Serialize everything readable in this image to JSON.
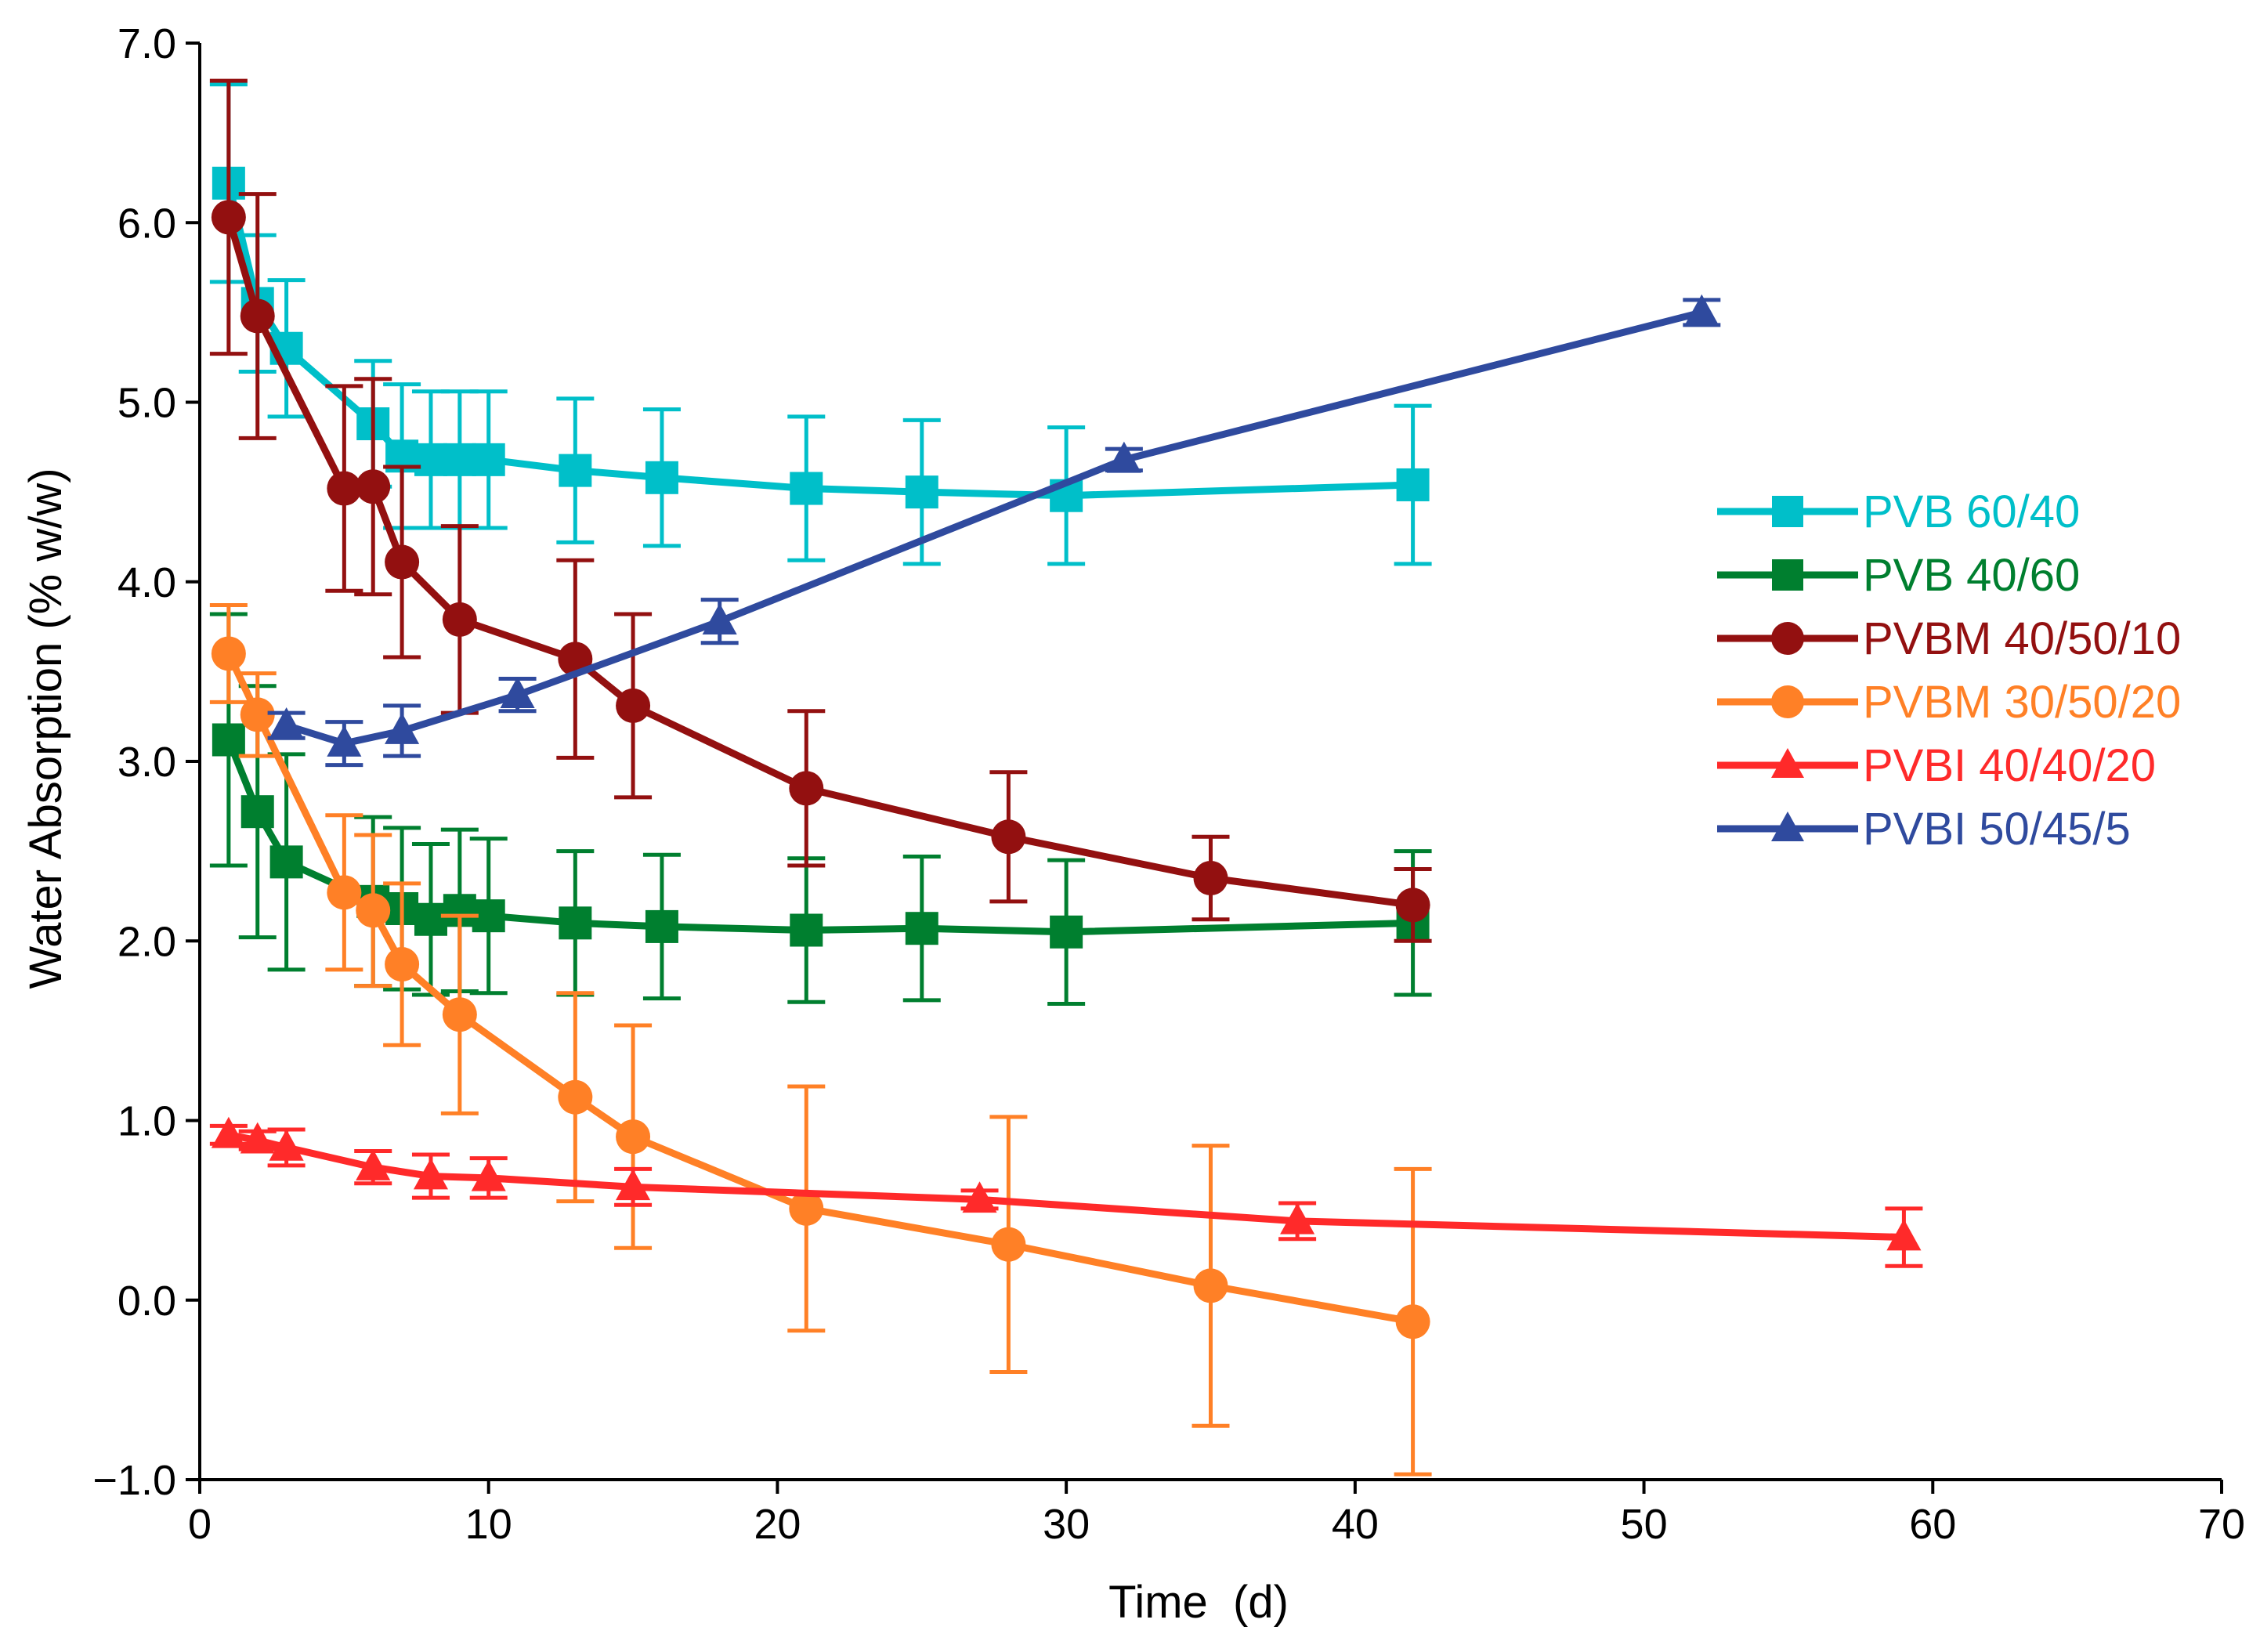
{
  "chart_data": {
    "type": "line",
    "title": "",
    "xlabel": "Time  (d)",
    "ylabel": "Water Absorption (% w/w)",
    "xlim": [
      0,
      70
    ],
    "ylim": [
      -1.0,
      7.0
    ],
    "xticks": [
      0,
      10,
      20,
      30,
      40,
      50,
      60,
      70
    ],
    "yticks": [
      -1.0,
      0.0,
      1.0,
      2.0,
      3.0,
      4.0,
      5.0,
      6.0,
      7.0
    ],
    "ytick_labels": [
      "−1.0",
      "0.0",
      "1.0",
      "2.0",
      "3.0",
      "4.0",
      "5.0",
      "6.0",
      "7.0"
    ],
    "grid": false,
    "legend_position": "right",
    "series": [
      {
        "name": "PVB 60/40",
        "color": "#00BFC9",
        "marker": "square",
        "x": [
          1,
          2,
          3,
          6,
          7,
          8,
          9,
          10,
          13,
          16,
          21,
          25,
          30,
          42
        ],
        "y": [
          6.22,
          5.55,
          5.3,
          4.88,
          4.7,
          4.68,
          4.68,
          4.68,
          4.62,
          4.58,
          4.52,
          4.5,
          4.48,
          4.54
        ],
        "err": [
          0.55,
          0.38,
          0.38,
          0.35,
          0.4,
          0.38,
          0.38,
          0.38,
          0.4,
          0.38,
          0.4,
          0.4,
          0.38,
          0.44
        ]
      },
      {
        "name": "PVB 40/60",
        "color": "#007F2F",
        "marker": "square",
        "x": [
          1,
          2,
          3,
          6,
          7,
          8,
          9,
          10,
          13,
          16,
          21,
          25,
          30,
          42
        ],
        "y": [
          3.12,
          2.72,
          2.44,
          2.22,
          2.18,
          2.12,
          2.17,
          2.14,
          2.1,
          2.08,
          2.06,
          2.07,
          2.05,
          2.1
        ],
        "err": [
          0.7,
          0.7,
          0.6,
          0.47,
          0.45,
          0.42,
          0.45,
          0.43,
          0.4,
          0.4,
          0.4,
          0.4,
          0.4,
          0.4
        ]
      },
      {
        "name": "PVBM 40/50/10",
        "color": "#931010",
        "marker": "circle",
        "x": [
          1,
          2,
          5,
          6,
          7,
          9,
          13,
          15,
          21,
          28,
          35,
          42
        ],
        "y": [
          6.03,
          5.48,
          4.52,
          4.53,
          4.11,
          3.79,
          3.57,
          3.31,
          2.85,
          2.58,
          2.35,
          2.2
        ],
        "err": [
          0.76,
          0.68,
          0.57,
          0.6,
          0.53,
          0.52,
          0.55,
          0.51,
          0.43,
          0.36,
          0.23,
          0.2
        ]
      },
      {
        "name": "PVBM 30/50/20",
        "color": "#FF8026",
        "marker": "circle",
        "x": [
          1,
          2,
          5,
          6,
          7,
          9,
          13,
          15,
          21,
          28,
          35,
          42
        ],
        "y": [
          3.6,
          3.26,
          2.27,
          2.17,
          1.87,
          1.59,
          1.13,
          0.91,
          0.51,
          0.31,
          0.08,
          -0.12
        ],
        "err": [
          0.27,
          0.23,
          0.43,
          0.42,
          0.45,
          0.55,
          0.58,
          0.62,
          0.68,
          0.71,
          0.78,
          0.85
        ]
      },
      {
        "name": "PVBI 40/40/20",
        "color": "#FF2A2A",
        "marker": "triangle",
        "x": [
          1,
          2,
          3,
          6,
          8,
          10,
          15,
          27,
          38,
          59
        ],
        "y": [
          0.92,
          0.89,
          0.85,
          0.74,
          0.69,
          0.68,
          0.63,
          0.56,
          0.44,
          0.35
        ],
        "err": [
          0.05,
          0.05,
          0.1,
          0.09,
          0.12,
          0.11,
          0.1,
          0.05,
          0.1,
          0.16
        ]
      },
      {
        "name": "PVBI 50/45/5",
        "color": "#2F4A9E",
        "marker": "triangle",
        "x": [
          3,
          5,
          7,
          11,
          18,
          32,
          52
        ],
        "y": [
          3.2,
          3.1,
          3.17,
          3.37,
          3.78,
          4.68,
          5.5
        ],
        "err": [
          0.07,
          0.12,
          0.14,
          0.09,
          0.12,
          0.06,
          0.07
        ]
      }
    ]
  }
}
